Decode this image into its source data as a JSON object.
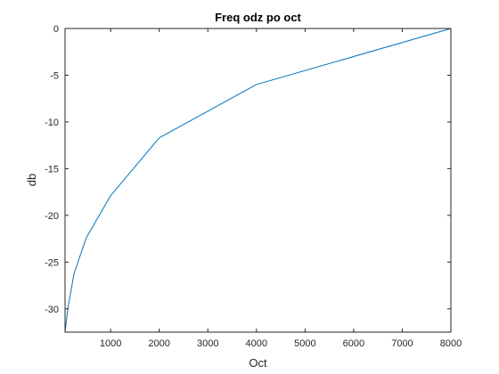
{
  "chart_data": {
    "type": "line",
    "title": "Freq odz po oct",
    "xlabel": "Oct",
    "ylabel": "db",
    "xlim": [
      63,
      8000
    ],
    "ylim": [
      -32.5,
      0
    ],
    "xticks": [
      1000,
      2000,
      3000,
      4000,
      5000,
      6000,
      7000,
      8000
    ],
    "xtick_labels": [
      "1000",
      "2000",
      "3000",
      "4000",
      "5000",
      "6000",
      "7000",
      "8000"
    ],
    "yticks": [
      0,
      -5,
      -10,
      -15,
      -20,
      -25,
      -30
    ],
    "ytick_labels": [
      "0",
      "-5",
      "-10",
      "-15",
      "-20",
      "-25",
      "-30"
    ],
    "grid": false,
    "legend": "none",
    "series": [
      {
        "color": "#0072bd",
        "x": [
          63,
          125,
          250,
          500,
          1000,
          2000,
          4000,
          8000
        ],
        "y": [
          -32.5,
          -29.8,
          -26.2,
          -22.4,
          -17.9,
          -11.7,
          -6.0,
          0
        ]
      }
    ]
  }
}
